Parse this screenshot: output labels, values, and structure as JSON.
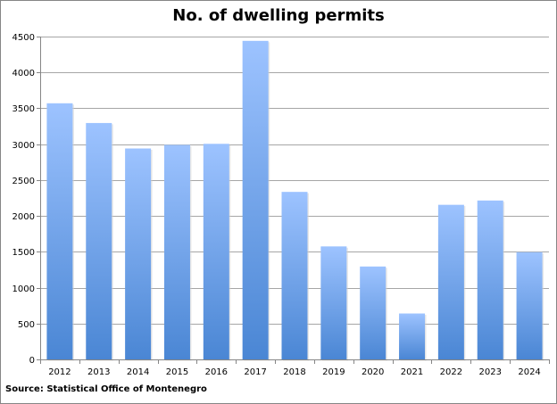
{
  "chart_data": {
    "type": "bar",
    "title": "No. of dwelling permits",
    "categories": [
      "2012",
      "2013",
      "2014",
      "2015",
      "2016",
      "2017",
      "2018",
      "2019",
      "2020",
      "2021",
      "2022",
      "2023",
      "2024"
    ],
    "values": [
      3570,
      3295,
      2940,
      2990,
      3005,
      4440,
      2335,
      1575,
      1295,
      640,
      2155,
      2215,
      1495
    ],
    "xlabel": "",
    "ylabel": "",
    "ylim": [
      0,
      4500
    ],
    "yticks": [
      0,
      500,
      1000,
      1500,
      2000,
      2500,
      3000,
      3500,
      4000,
      4500
    ],
    "grid": true,
    "legend": "none",
    "colors": {
      "bar_top": "#9dc3ff",
      "bar_bottom": "#4a86d4",
      "grid": "#a6a6a6"
    }
  },
  "source": "Source: Statistical Office of Montenegro"
}
